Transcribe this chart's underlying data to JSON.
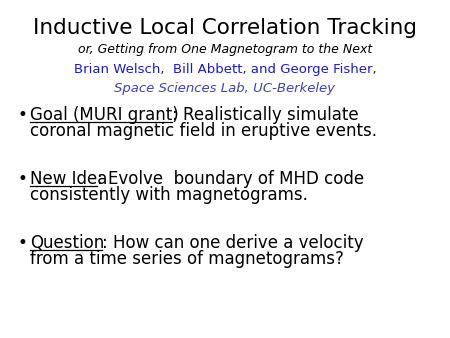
{
  "bg_color": "#ffffff",
  "title": "Inductive Local Correlation Tracking",
  "subtitle": "or, Getting from One Magnetogram to the Next",
  "authors": "Brian Welsch,  Bill Abbett, and George Fisher,",
  "affiliation": "Space Sciences Lab, UC-Berkeley",
  "title_color": "#000000",
  "subtitle_color": "#000000",
  "authors_color": "#1a1acd",
  "affiliation_color": "#4040bb",
  "bullet_color": "#000000",
  "bullet1_label": "Goal (MURI grant)",
  "bullet1_colon": ": Realistically simulate",
  "bullet1_line2": "coronal magnetic field in eruptive events.",
  "bullet2_label": "New Idea",
  "bullet2_colon": ": Evolve  boundary of MHD code",
  "bullet2_line2": "consistently with magnetograms.",
  "bullet3_label": "Question",
  "bullet3_colon": ": How can one derive a velocity",
  "bullet3_line2": "from a time series of magnetograms?",
  "title_fontsize": 15.5,
  "subtitle_fontsize": 9.0,
  "authors_fontsize": 9.5,
  "affiliation_fontsize": 9.5,
  "bullet_fontsize": 12.0
}
